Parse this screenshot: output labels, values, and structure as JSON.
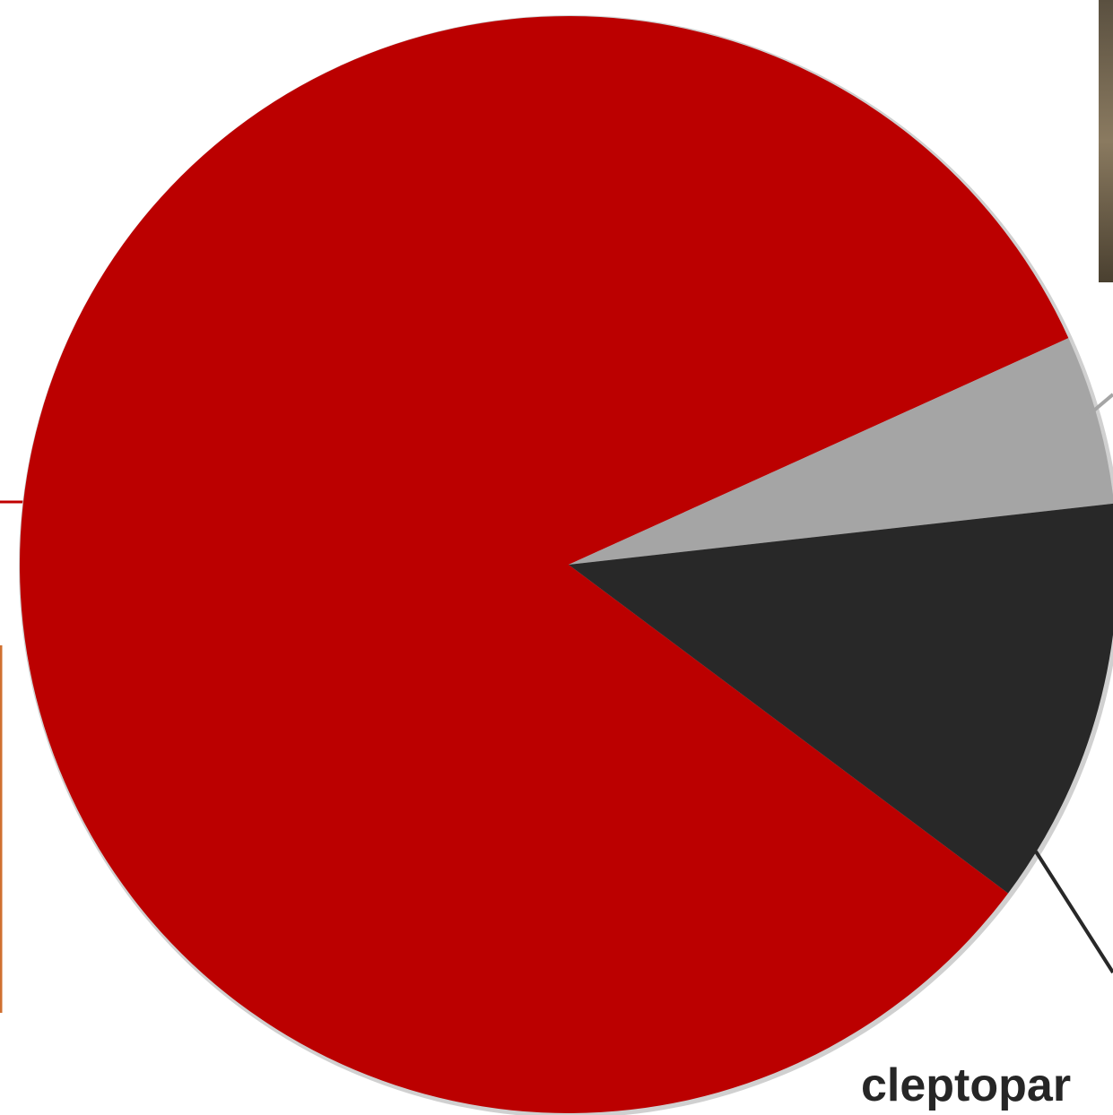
{
  "chart_data": {
    "type": "pie",
    "categories": [
      null,
      null,
      "cleptopar"
    ],
    "values": [
      83,
      5,
      12
    ],
    "colors": [
      "#bb0000",
      "#a5a5a5",
      "#282828"
    ]
  }
}
